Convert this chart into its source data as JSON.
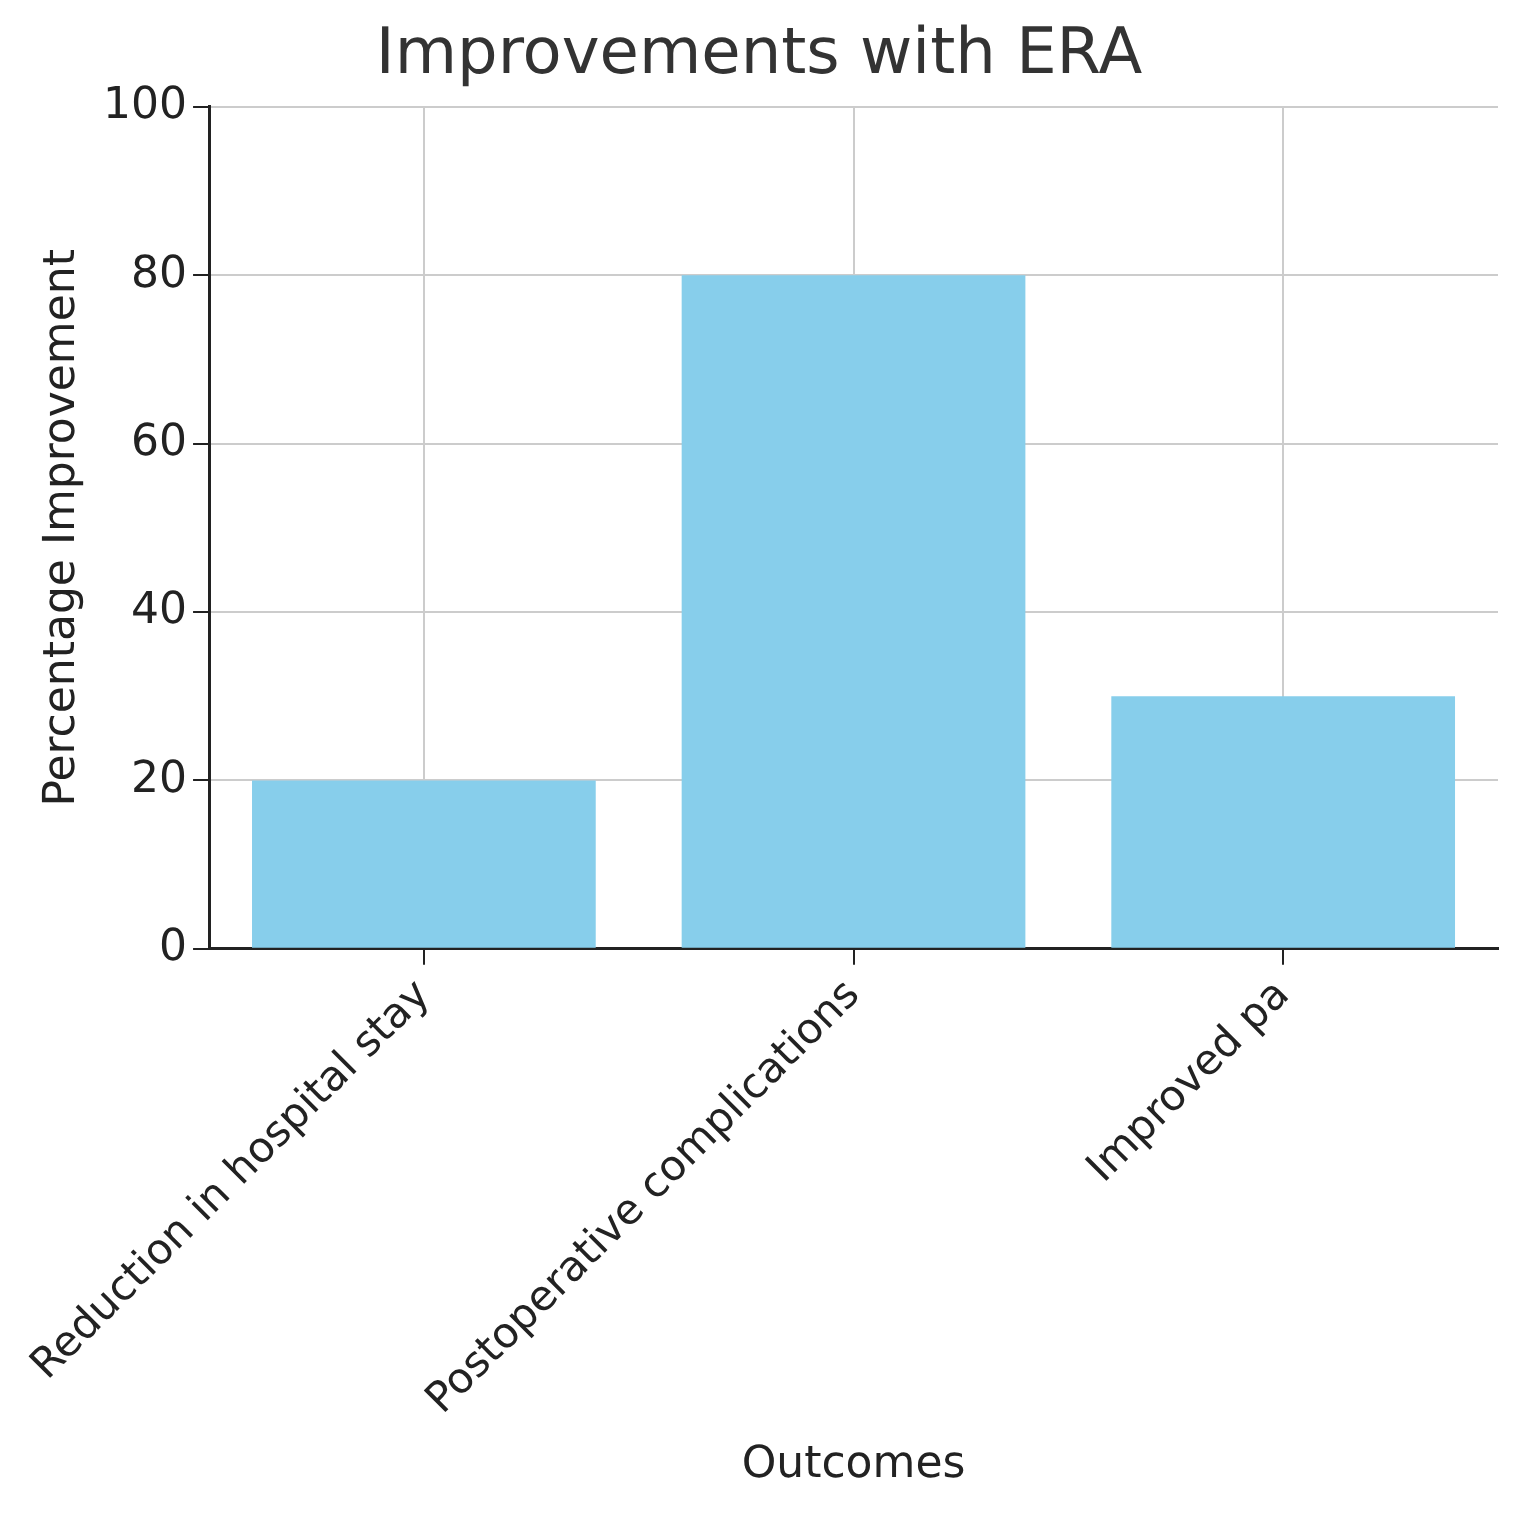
{
  "chart_data": {
    "type": "bar",
    "title": "Improvements with ERA",
    "xlabel": "Outcomes",
    "ylabel": "Percentage Improvement",
    "categories": [
      "Reduction in hospital stay",
      "Postoperative complications",
      "Improved pa"
    ],
    "values": [
      20,
      80,
      30
    ],
    "color": "#87ceeb",
    "ylim": [
      0,
      100
    ],
    "yticks": [
      0,
      20,
      40,
      60,
      80,
      100
    ],
    "grid": true
  }
}
